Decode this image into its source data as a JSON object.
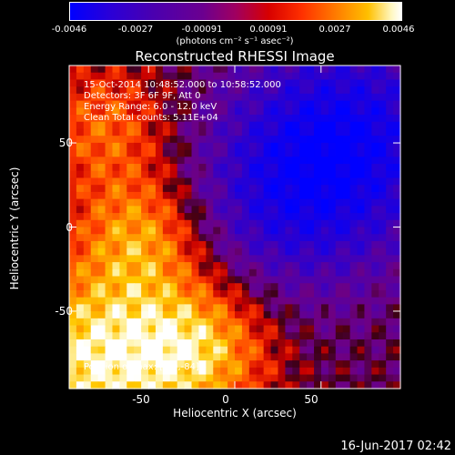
{
  "colorbar": {
    "ticks": [
      "-0.0046",
      "-0.0027",
      "-0.00091",
      "0.00091",
      "0.0027",
      "0.0046"
    ],
    "units": "(photons cm⁻² s⁻¹ asec⁻²)",
    "colors": [
      "#0000ff",
      "#6b0090",
      "#d80000",
      "#ff7a00",
      "#ffffff"
    ]
  },
  "chart_data": {
    "type": "heatmap",
    "title": "Reconstructed RHESSI Image",
    "xlabel": "Heliocentric X (arcsec)",
    "ylabel": "Heliocentric Y (arcsec)",
    "xlim": [
      -96,
      96
    ],
    "ylim": [
      -96,
      96
    ],
    "xticks": [
      "-50",
      "0",
      "50"
    ],
    "yticks": [
      "50",
      "0",
      "-50"
    ],
    "xtick_values": [
      -50,
      0,
      50
    ],
    "ytick_values": [
      50,
      0,
      -50
    ],
    "value_range": [
      -0.0046,
      0.0046
    ],
    "grid_description": "Bright (yellow/white) emission at lower-left and bottom-center; negative (blue/purple) region at upper-right",
    "annotations": [
      "15-Oct-2014 10:48:52.000 to 10:58:52.000",
      "Detectors: 3F 6F 9F, Att 0",
      "Energy Range: 6.0 - 12.0 keV",
      "Clean      Total counts: 5.11E+04",
      "Position of max: [-49,-84]"
    ]
  },
  "footer": {
    "timestamp": "16-Jun-2017 02:42"
  }
}
